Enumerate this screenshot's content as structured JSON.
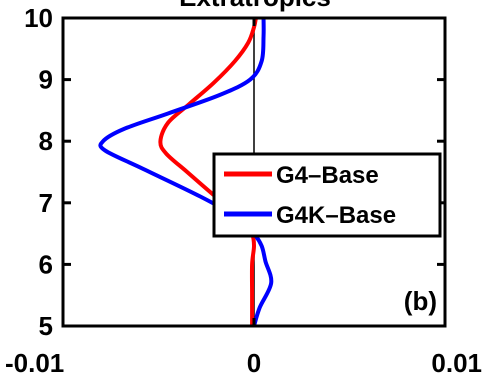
{
  "chart_data": {
    "type": "line",
    "title": "Extratropics",
    "panel_label": "(b)",
    "xlabel": "",
    "ylabel": "",
    "xlim": [
      -0.01,
      0.01
    ],
    "ylim": [
      5,
      10
    ],
    "x_ticks": [
      -0.01,
      0,
      0.01
    ],
    "x_tick_labels": [
      "-0.01",
      "0",
      "0.01"
    ],
    "y_ticks": [
      5,
      6,
      7,
      8,
      9,
      10
    ],
    "y_tick_labels": [
      "5",
      "6",
      "7",
      "8",
      "9",
      "10"
    ],
    "zero_line": true,
    "legend_position": "right",
    "series": [
      {
        "name": "G4–Base",
        "color": "#ff0000",
        "points": [
          {
            "x": -0.0001,
            "y": 5.0
          },
          {
            "x": -0.0001,
            "y": 5.5
          },
          {
            "x": -0.0001,
            "y": 6.0
          },
          {
            "x": 0.0,
            "y": 6.3
          },
          {
            "x": -0.0001,
            "y": 6.5
          },
          {
            "x": -0.0005,
            "y": 6.7
          },
          {
            "x": -0.0012,
            "y": 6.9
          },
          {
            "x": -0.0022,
            "y": 7.15
          },
          {
            "x": -0.0035,
            "y": 7.5
          },
          {
            "x": -0.0046,
            "y": 7.8
          },
          {
            "x": -0.0049,
            "y": 8.0
          },
          {
            "x": -0.0045,
            "y": 8.3
          },
          {
            "x": -0.0034,
            "y": 8.6
          },
          {
            "x": -0.0021,
            "y": 8.95
          },
          {
            "x": -0.001,
            "y": 9.3
          },
          {
            "x": -0.0003,
            "y": 9.6
          },
          {
            "x": 0.0,
            "y": 9.85
          },
          {
            "x": 0.0001,
            "y": 10.0
          }
        ]
      },
      {
        "name": "G4K–Base",
        "color": "#0000ff",
        "points": [
          {
            "x": 0.0,
            "y": 5.0
          },
          {
            "x": 0.0003,
            "y": 5.3
          },
          {
            "x": 0.0009,
            "y": 5.7
          },
          {
            "x": 0.0006,
            "y": 6.05
          },
          {
            "x": 0.0004,
            "y": 6.3
          },
          {
            "x": 0.0,
            "y": 6.5
          },
          {
            "x": -0.0008,
            "y": 6.75
          },
          {
            "x": -0.0028,
            "y": 7.1
          },
          {
            "x": -0.0058,
            "y": 7.55
          },
          {
            "x": -0.0078,
            "y": 7.85
          },
          {
            "x": -0.0079,
            "y": 8.0
          },
          {
            "x": -0.0068,
            "y": 8.2
          },
          {
            "x": -0.0045,
            "y": 8.45
          },
          {
            "x": -0.0018,
            "y": 8.75
          },
          {
            "x": -0.0002,
            "y": 9.0
          },
          {
            "x": 0.0004,
            "y": 9.3
          },
          {
            "x": 0.0005,
            "y": 9.7
          },
          {
            "x": 0.0005,
            "y": 10.0
          }
        ]
      }
    ]
  }
}
